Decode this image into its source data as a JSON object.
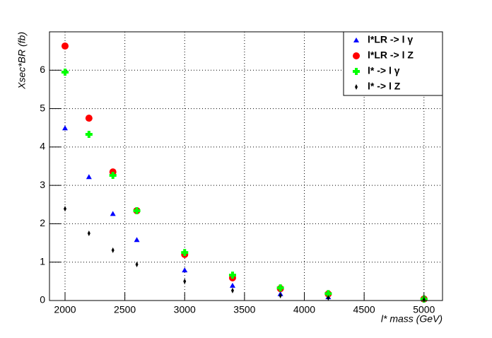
{
  "chart_data": {
    "type": "scatter",
    "x_label": "l* mass (GeV)",
    "y_label": "Xsec*BR (fb)",
    "x": [
      2000,
      2200,
      2400,
      2600,
      3000,
      3400,
      3800,
      4200,
      5000
    ],
    "series": [
      {
        "name": "l*LR -> l γ",
        "color": "#0000ff",
        "marker": "triangle",
        "values": [
          4.49,
          3.22,
          2.26,
          1.58,
          0.79,
          0.39,
          0.17,
          0.09,
          0.02
        ]
      },
      {
        "name": "l*LR -> l Z",
        "color": "#ff0000",
        "marker": "circle",
        "values": [
          6.63,
          4.75,
          3.35,
          2.34,
          1.2,
          0.59,
          0.31,
          0.17,
          0.04
        ]
      },
      {
        "name": "l* -> l γ",
        "color": "#00ff00",
        "marker": "cross",
        "values": [
          5.95,
          4.33,
          3.26,
          2.34,
          1.25,
          0.66,
          0.33,
          0.18,
          0.04
        ]
      },
      {
        "name": "l* -> l Z",
        "color": "#000000",
        "marker": "diamond",
        "values": [
          2.39,
          1.75,
          1.31,
          0.94,
          0.5,
          0.26,
          0.13,
          0.07,
          0.02
        ]
      }
    ],
    "xlim": [
      1870,
      5155
    ],
    "xticks": [
      2000,
      2500,
      3000,
      3500,
      4000,
      4500,
      5000
    ],
    "ylim": [
      0,
      7
    ],
    "yticks": [
      0,
      1,
      2,
      3,
      4,
      5,
      6
    ],
    "grid": true,
    "legend": "top-right"
  }
}
